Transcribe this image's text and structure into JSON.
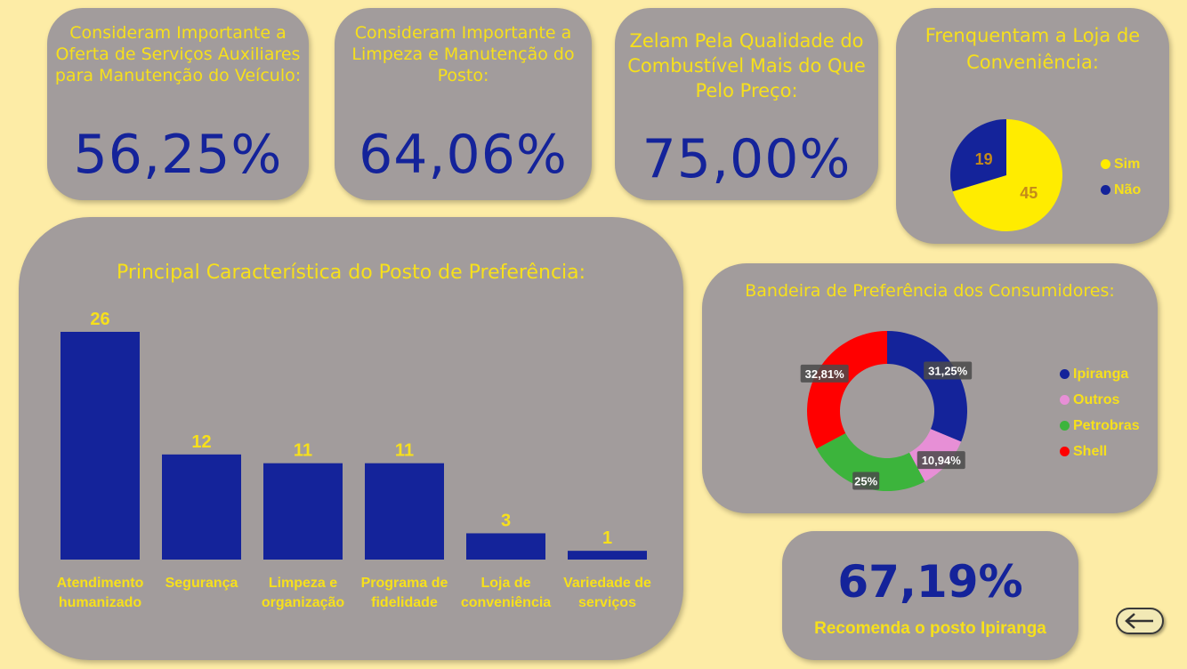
{
  "kpis": [
    {
      "title": "Consideram Importante a Oferta de Serviços Auxiliares para Manutenção do Veículo:",
      "value": "56,25%"
    },
    {
      "title": "Consideram Importante a Limpeza e Manutenção do Posto:",
      "value": "64,06%"
    },
    {
      "title": "Zelam Pela Qualidade do Combustível Mais do Que Pelo Preço:",
      "value": "75,00%"
    }
  ],
  "recommend": {
    "value": "67,19%",
    "label": "Recomenda o posto Ipiranga"
  },
  "back_button": {
    "icon": "arrow-left-icon"
  },
  "colors": {
    "background": "#fdeca6",
    "card": "#a29c9c",
    "title": "#f7e01b",
    "value": "#14239a",
    "bar": "#14239a"
  },
  "chart_data": [
    {
      "type": "pie",
      "title": "Frenquentam a Loja de Conveniência:",
      "categories": [
        "Sim",
        "Não"
      ],
      "values": [
        45,
        19
      ],
      "colors": [
        "#ffec00",
        "#14239a"
      ],
      "legend": "right"
    },
    {
      "type": "bar",
      "title": "Principal Característica do Posto de Preferência:",
      "categories": [
        "Atendimento humanizado",
        "Segurança",
        "Limpeza e organização",
        "Programa de fidelidade",
        "Loja de conveniência",
        "Variedade de serviços"
      ],
      "values": [
        26,
        12,
        11,
        11,
        3,
        1
      ],
      "xlabel": "",
      "ylabel": "",
      "ylim": [
        0,
        26
      ]
    },
    {
      "type": "pie",
      "subtype": "donut",
      "title": "Bandeira de Preferência dos Consumidores:",
      "categories": [
        "Ipiranga",
        "Outros",
        "Petrobras",
        "Shell"
      ],
      "values": [
        31.25,
        10.94,
        25,
        32.81
      ],
      "labels": [
        "31,25%",
        "10,94%",
        "25%",
        "32,81%"
      ],
      "colors": [
        "#14239a",
        "#e78fd6",
        "#3cb43c",
        "#ff0000"
      ],
      "legend": "right"
    }
  ]
}
